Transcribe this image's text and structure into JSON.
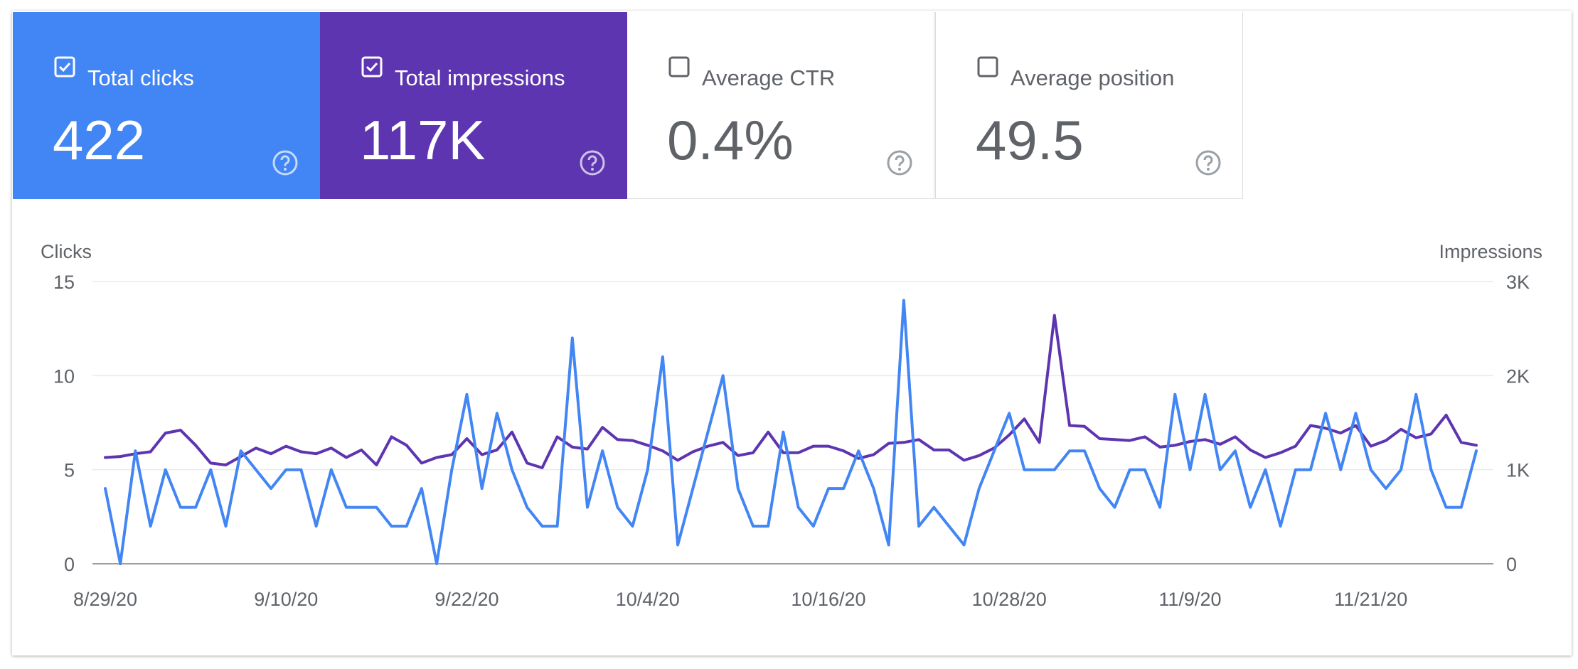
{
  "metrics": [
    {
      "label": "Total clicks",
      "value": "422",
      "checked": true,
      "color": "#4285f4"
    },
    {
      "label": "Total impressions",
      "value": "117K",
      "checked": true,
      "color": "#5e35b1"
    },
    {
      "label": "Average CTR",
      "value": "0.4%",
      "checked": false,
      "color": "#ffffff"
    },
    {
      "label": "Average position",
      "value": "49.5",
      "checked": false,
      "color": "#ffffff"
    }
  ],
  "help_icon": "help-circle-icon",
  "chart_data": {
    "type": "line",
    "left_axis_title": "Clicks",
    "right_axis_title": "Impressions",
    "left_ticks": [
      "0",
      "5",
      "10",
      "15"
    ],
    "right_ticks": [
      "0",
      "1K",
      "2K",
      "3K"
    ],
    "ylim_left": [
      0,
      15
    ],
    "ylim_right": [
      0,
      3000
    ],
    "grid": true,
    "x_start": "2020-08-29",
    "x_tick_labels": [
      {
        "date": "2020-08-29",
        "label": "8/29/20"
      },
      {
        "date": "2020-09-10",
        "label": "9/10/20"
      },
      {
        "date": "2020-09-22",
        "label": "9/22/20"
      },
      {
        "date": "2020-10-04",
        "label": "10/4/20"
      },
      {
        "date": "2020-10-16",
        "label": "10/16/20"
      },
      {
        "date": "2020-10-28",
        "label": "10/28/20"
      },
      {
        "date": "2020-11-09",
        "label": "11/9/20"
      },
      {
        "date": "2020-11-21",
        "label": "11/21/20"
      }
    ],
    "series": [
      {
        "name": "Total clicks",
        "axis": "left",
        "color": "#4285f4",
        "values": [
          4,
          0,
          6,
          2,
          5,
          3,
          3,
          5,
          2,
          6,
          5,
          4,
          5,
          5,
          2,
          5,
          3,
          3,
          3,
          2,
          2,
          4,
          0,
          5,
          9,
          4,
          8,
          5,
          3,
          2,
          2,
          12,
          3,
          6,
          3,
          2,
          5,
          11,
          1,
          4,
          7,
          10,
          4,
          2,
          2,
          7,
          3,
          2,
          4,
          4,
          6,
          4,
          1,
          14,
          2,
          3,
          2,
          1,
          4,
          6,
          8,
          5,
          5,
          5,
          6,
          6,
          4,
          3,
          5,
          5,
          3,
          9,
          5,
          9,
          5,
          6,
          3,
          5,
          2,
          5,
          5,
          8,
          5,
          8,
          5,
          4,
          5,
          9,
          5,
          3,
          3,
          6
        ]
      },
      {
        "name": "Total impressions",
        "axis": "right",
        "color": "#5e35b1",
        "values": [
          1130,
          1140,
          1170,
          1190,
          1390,
          1420,
          1260,
          1070,
          1050,
          1140,
          1230,
          1170,
          1250,
          1190,
          1170,
          1230,
          1130,
          1210,
          1050,
          1350,
          1260,
          1070,
          1130,
          1160,
          1330,
          1160,
          1210,
          1400,
          1070,
          1020,
          1350,
          1240,
          1220,
          1450,
          1320,
          1310,
          1260,
          1200,
          1100,
          1190,
          1250,
          1290,
          1150,
          1180,
          1400,
          1180,
          1180,
          1250,
          1250,
          1200,
          1120,
          1160,
          1280,
          1290,
          1320,
          1210,
          1210,
          1100,
          1150,
          1230,
          1370,
          1540,
          1290,
          2640,
          1470,
          1460,
          1330,
          1320,
          1310,
          1350,
          1240,
          1260,
          1300,
          1320,
          1270,
          1350,
          1210,
          1130,
          1180,
          1250,
          1470,
          1440,
          1390,
          1470,
          1250,
          1310,
          1430,
          1340,
          1380,
          1580,
          1290,
          1260
        ]
      }
    ]
  }
}
